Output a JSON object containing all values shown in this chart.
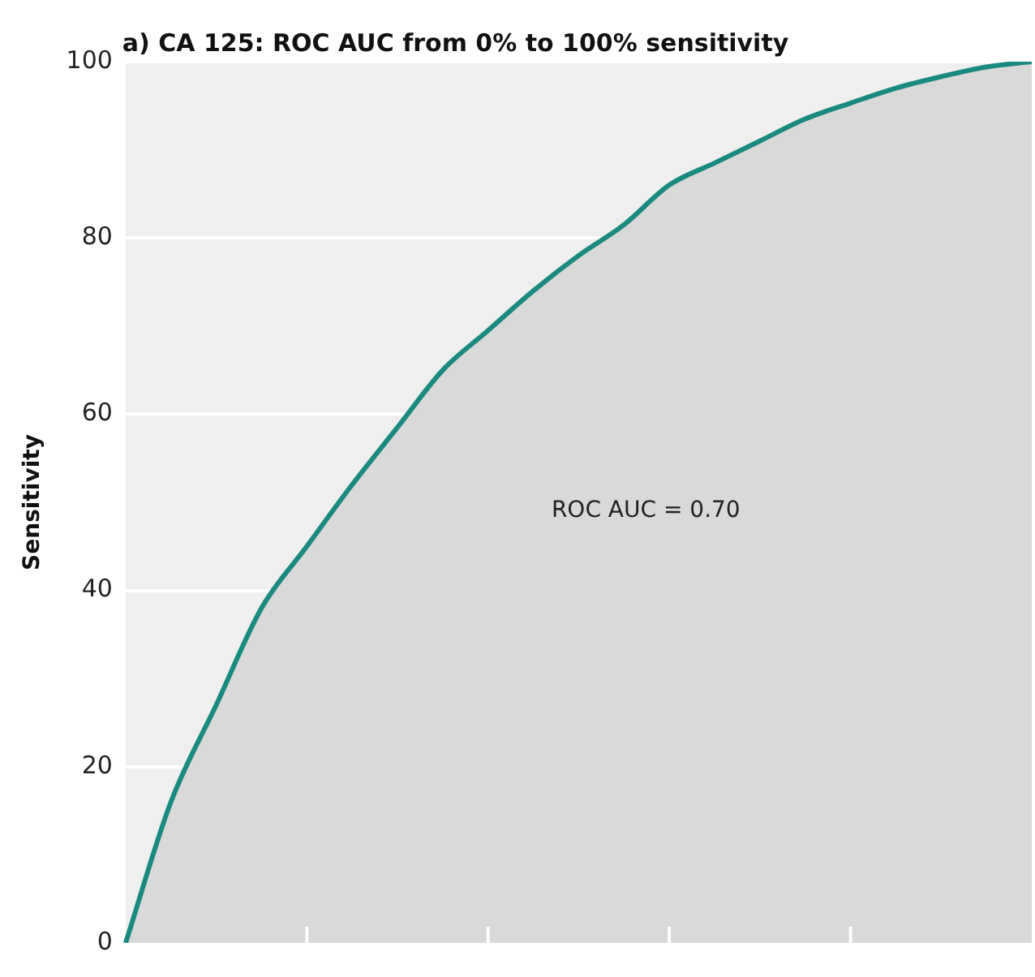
{
  "chart_data": {
    "type": "area",
    "title": "a) CA 125: ROC AUC from 0% to 100% sensitivity",
    "ylabel": "Sensitivity",
    "categories": [
      null,
      null,
      null,
      null,
      null,
      null,
      null,
      null,
      null,
      null,
      null,
      null,
      null,
      null,
      null,
      null,
      null,
      null,
      null,
      null,
      null
    ],
    "series": [
      {
        "color": "#1a8a80",
        "values": [
          0,
          16,
          27,
          38,
          45,
          52,
          58.5,
          65,
          69.5,
          74,
          78,
          81.5,
          86,
          88.5,
          91,
          93.5,
          95.3,
          97,
          98.3,
          99.4,
          100
        ]
      }
    ],
    "ylim": [
      0,
      100
    ],
    "yticks": [
      0,
      20,
      40,
      60,
      80,
      100
    ],
    "grid": "y",
    "tick_labels": "y",
    "marker": "none",
    "line_style": "solid",
    "annotations": [
      "ROC AUC = 0.70"
    ]
  }
}
